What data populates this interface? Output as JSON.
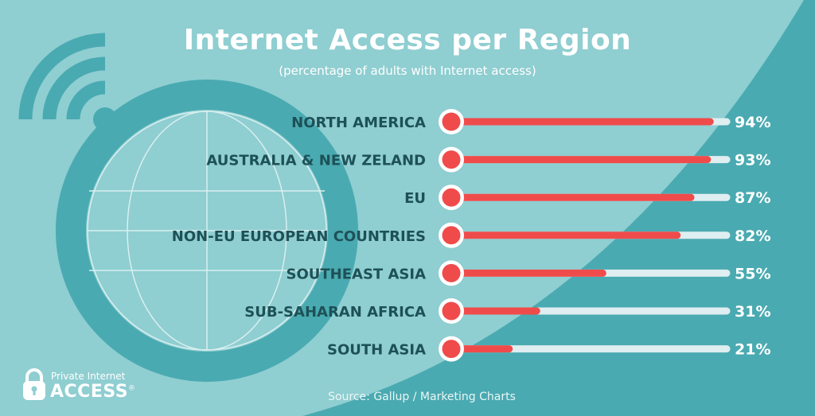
{
  "title": "Internet Access per Region",
  "subtitle": "(percentage of adults with Internet access)",
  "source": "Source: Gallup / Marketing Charts",
  "logo": {
    "line1": "Private Internet",
    "line2": "ACCESS",
    "mark": "®"
  },
  "colors": {
    "background": "#8fced1",
    "diagonal": "#4aaab1",
    "bar": "#f04b4b",
    "track": "#dfeef1",
    "label": "#1d5157"
  },
  "chart_data": {
    "type": "bar",
    "orientation": "horizontal",
    "unit": "%",
    "xlim": [
      0,
      100
    ],
    "categories": [
      "NORTH AMERICA",
      "AUSTRALIA & NEW ZELAND",
      "EU",
      "NON-EU EUROPEAN COUNTRIES",
      "SOUTHEAST ASIA",
      "SUB-SAHARAN AFRICA",
      "SOUTH ASIA"
    ],
    "values": [
      94,
      93,
      87,
      82,
      55,
      31,
      21
    ],
    "labels": [
      "94%",
      "93%",
      "87%",
      "82%",
      "55%",
      "31%",
      "21%"
    ]
  }
}
